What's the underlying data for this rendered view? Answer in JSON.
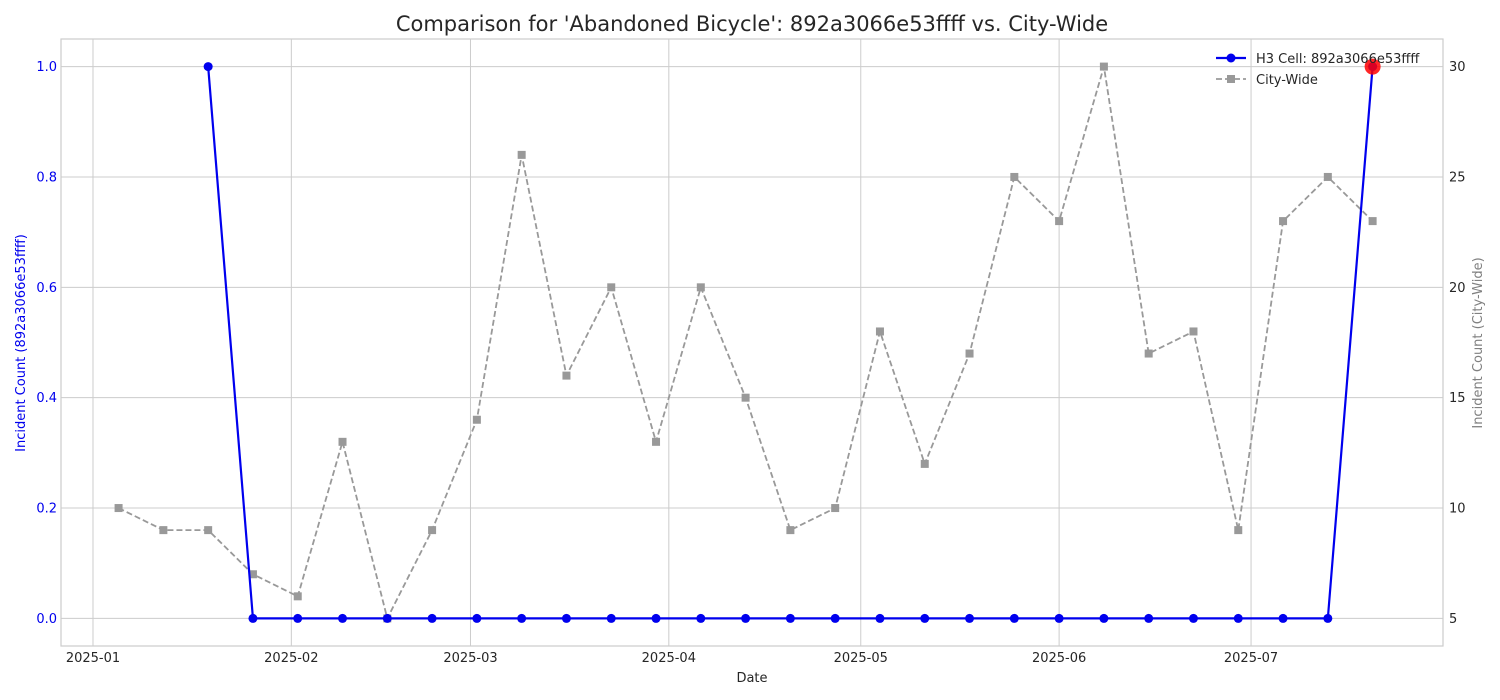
{
  "chart_data": {
    "type": "line",
    "title": "Comparison for 'Abandoned Bicycle': 892a3066e53ffff vs. City-Wide",
    "xlabel": "Date",
    "ylabel_left": "Incident Count (892a3066e53ffff)",
    "ylabel_right": "Incident Count (City-Wide)",
    "xlim": [
      "2024-12-27",
      "2025-07-31"
    ],
    "ylim_left": [
      -0.05,
      1.05
    ],
    "ylim_right": [
      3.75,
      31.25
    ],
    "x_ticks": [
      "2025-01-01",
      "2025-02-01",
      "2025-03-01",
      "2025-04-01",
      "2025-05-01",
      "2025-06-01",
      "2025-07-01"
    ],
    "x_tick_labels": [
      "2025-01",
      "2025-02",
      "2025-03",
      "2025-04",
      "2025-05",
      "2025-06",
      "2025-07"
    ],
    "y_left_ticks": [
      0.0,
      0.2,
      0.4,
      0.6,
      0.8,
      1.0
    ],
    "y_left_tick_labels": [
      "0.0",
      "0.2",
      "0.4",
      "0.6",
      "0.8",
      "1.0"
    ],
    "y_right_ticks": [
      5,
      10,
      15,
      20,
      25,
      30
    ],
    "y_right_tick_labels": [
      "5",
      "10",
      "15",
      "20",
      "25",
      "30"
    ],
    "grid": true,
    "legend_position": "top-right",
    "series": [
      {
        "name": "H3 Cell: 892a3066e53ffff",
        "axis": "left",
        "color": "#0000ee",
        "style": "solid",
        "marker": "circle",
        "x": [
          "2025-01-19",
          "2025-01-26",
          "2025-02-02",
          "2025-02-09",
          "2025-02-16",
          "2025-02-23",
          "2025-03-02",
          "2025-03-09",
          "2025-03-16",
          "2025-03-23",
          "2025-03-30",
          "2025-04-06",
          "2025-04-13",
          "2025-04-20",
          "2025-04-27",
          "2025-05-04",
          "2025-05-11",
          "2025-05-18",
          "2025-05-25",
          "2025-06-01",
          "2025-06-08",
          "2025-06-15",
          "2025-06-22",
          "2025-06-29",
          "2025-07-06",
          "2025-07-13",
          "2025-07-20"
        ],
        "values": [
          1,
          0,
          0,
          0,
          0,
          0,
          0,
          0,
          0,
          0,
          0,
          0,
          0,
          0,
          0,
          0,
          0,
          0,
          0,
          0,
          0,
          0,
          0,
          0,
          0,
          0,
          1
        ]
      },
      {
        "name": "City-Wide",
        "axis": "right",
        "color": "#999999",
        "style": "dashed",
        "marker": "square",
        "x": [
          "2025-01-05",
          "2025-01-12",
          "2025-01-19",
          "2025-01-26",
          "2025-02-02",
          "2025-02-09",
          "2025-02-16",
          "2025-02-23",
          "2025-03-02",
          "2025-03-09",
          "2025-03-16",
          "2025-03-23",
          "2025-03-30",
          "2025-04-06",
          "2025-04-13",
          "2025-04-20",
          "2025-04-27",
          "2025-05-04",
          "2025-05-11",
          "2025-05-18",
          "2025-05-25",
          "2025-06-01",
          "2025-06-08",
          "2025-06-15",
          "2025-06-22",
          "2025-06-29",
          "2025-07-06",
          "2025-07-13",
          "2025-07-20"
        ],
        "values": [
          10,
          9,
          9,
          7,
          6,
          13,
          5,
          9,
          14,
          26,
          16,
          20,
          13,
          20,
          15,
          9,
          10,
          18,
          12,
          17,
          25,
          23,
          30,
          17,
          18,
          9,
          23,
          25,
          23
        ]
      }
    ],
    "highlight": {
      "series": "H3 Cell: 892a3066e53ffff",
      "x": "2025-07-20",
      "value": 1,
      "color": "#ff0000"
    }
  }
}
